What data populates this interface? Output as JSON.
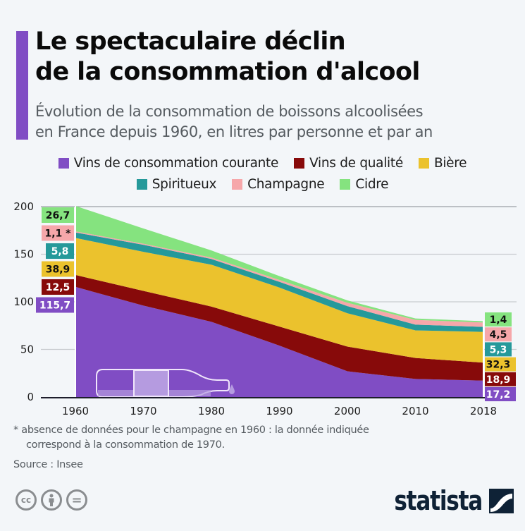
{
  "header": {
    "title_line1": "Le spectaculaire déclin",
    "title_line2": "de la consommation d'alcool",
    "subtitle_line1": "Évolution de la consommation de boissons alcoolisées",
    "subtitle_line2": "en France depuis 1960, en litres par personne et par an"
  },
  "colors": {
    "accent": "#804dc4",
    "vins_courante": "#804dc4",
    "vins_qualite": "#870a0a",
    "biere": "#ebc22d",
    "spiritueux": "#25999a",
    "champagne": "#f6a7aa",
    "cidre": "#85e37f"
  },
  "chart_data": {
    "type": "area",
    "stacked": true,
    "title": "Le spectaculaire déclin de la consommation d'alcool",
    "xlabel": "",
    "ylabel": "litres par personne et par an",
    "categories": [
      "1960",
      "1970",
      "1980",
      "1990",
      "2000",
      "2010",
      "2018"
    ],
    "ylim": [
      0,
      200
    ],
    "yticks": [
      "0",
      "50",
      "100",
      "150",
      "200"
    ],
    "grid": true,
    "legend_position": "top",
    "series": [
      {
        "name": "Vins de consommation courante",
        "key": "vins_courante",
        "values": [
          115.7,
          96,
          79,
          54,
          27,
          19,
          17.2
        ],
        "label_first": "115,7",
        "label_last": "17,2",
        "label_color": "#ffffff"
      },
      {
        "name": "Vins de qualité",
        "key": "vins_qualite",
        "values": [
          12.5,
          15.5,
          16,
          20,
          26,
          22,
          18.9
        ],
        "label_first": "12,5",
        "label_last": "18,9",
        "label_color": "#ffffff"
      },
      {
        "name": "Bière",
        "key": "biere",
        "values": [
          38.9,
          41,
          44,
          41,
          35,
          29,
          32.3
        ],
        "label_first": "38,9",
        "label_last": "32,3",
        "label_color": "#111111"
      },
      {
        "name": "Spiritueux",
        "key": "spiritueux",
        "values": [
          5.8,
          7.4,
          6,
          6,
          7.5,
          6,
          5.3
        ],
        "label_first": "5,8",
        "label_last": "5,3",
        "label_color": "#ffffff"
      },
      {
        "name": "Champagne",
        "key": "champagne",
        "values": [
          1.1,
          1.1,
          1.5,
          2,
          3.5,
          5,
          4.5
        ],
        "label_first": "1,1 *",
        "label_last": "4,5",
        "label_color": "#111111"
      },
      {
        "name": "Cidre",
        "key": "cidre",
        "values": [
          26.7,
          16,
          7.5,
          4,
          2.5,
          1.5,
          1.4
        ],
        "label_first": "26,7",
        "label_last": "1,4",
        "label_color": "#111111"
      }
    ]
  },
  "footnote": {
    "line1": "* absence de données pour le champagne en 1960 : la donnée indiquée",
    "line2": "correspond à la consommation de 1970."
  },
  "source": "Source : Insee",
  "license_icons": [
    "cc-icon",
    "attribution-icon",
    "no-derivatives-icon"
  ],
  "license_glyphs": {
    "cc": "cc",
    "eq": "="
  },
  "brand": "statista"
}
